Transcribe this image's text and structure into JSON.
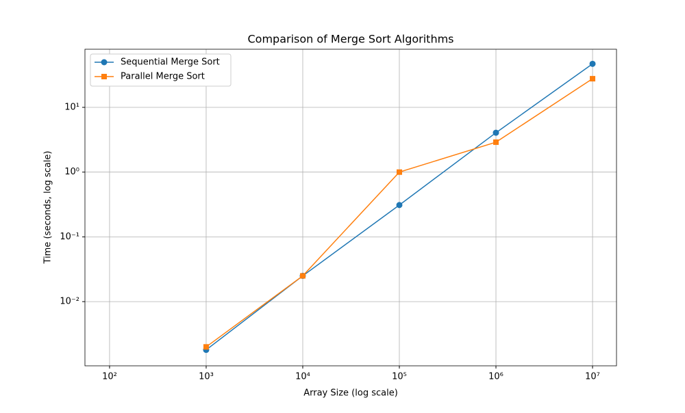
{
  "chart_data": {
    "type": "line",
    "title": "Comparison of Merge Sort Algorithms",
    "x_label": "Array Size (log scale)",
    "y_label": "Time (seconds, log scale)",
    "x": [
      1000,
      10000,
      100000,
      1000000,
      10000000
    ],
    "series": [
      {
        "name": "Sequential Merge Sort",
        "color": "#1f77b4",
        "marker": "circle",
        "values": [
          0.0018,
          0.025,
          0.31,
          4.06,
          47
        ]
      },
      {
        "name": "Parallel Merge Sort",
        "color": "#ff7f0e",
        "marker": "square",
        "values": [
          0.002,
          0.025,
          1.0,
          2.9,
          27.7
        ]
      }
    ],
    "xscale": "log",
    "yscale": "log",
    "xlim": [
      55.6,
      17700000
    ],
    "ylim": [
      0.00102,
      79
    ],
    "xticks": [
      {
        "value": 100,
        "label": "10²"
      },
      {
        "value": 1000,
        "label": "10³"
      },
      {
        "value": 10000,
        "label": "10⁴"
      },
      {
        "value": 100000,
        "label": "10⁵"
      },
      {
        "value": 1000000,
        "label": "10⁶"
      },
      {
        "value": 10000000,
        "label": "10⁷"
      }
    ],
    "yticks": [
      {
        "value": 0.01,
        "label": "10⁻²"
      },
      {
        "value": 0.1,
        "label": "10⁻¹"
      },
      {
        "value": 1,
        "label": "10⁰"
      },
      {
        "value": 10,
        "label": "10¹"
      }
    ],
    "grid": true,
    "legend": "upper-left"
  }
}
